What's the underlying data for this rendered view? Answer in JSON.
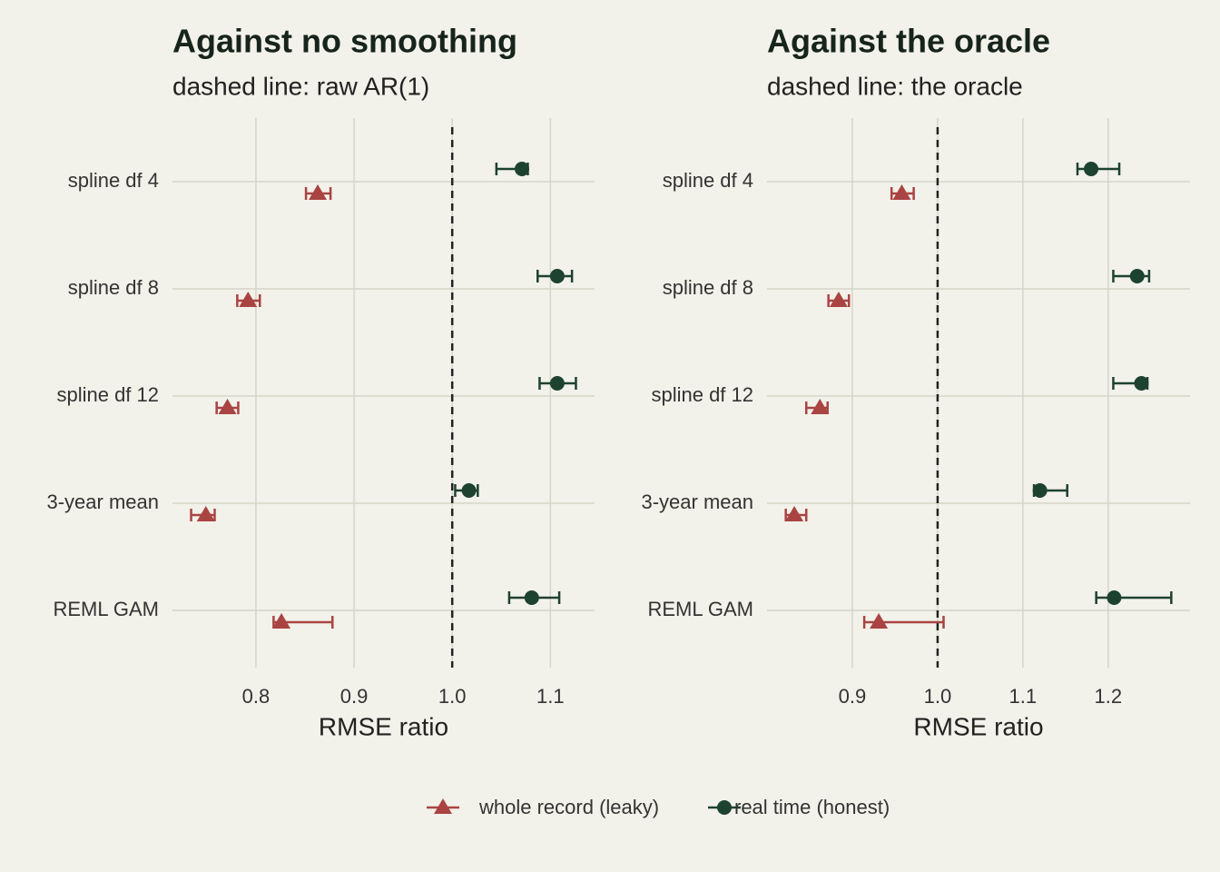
{
  "chart_data": [
    {
      "type": "errorbar",
      "title": "Against no smoothing",
      "subtitle": "dashed line: raw AR(1)",
      "xlabel": "RMSE ratio",
      "categories": [
        "spline df 4",
        "spline df 8",
        "spline df 12",
        "3-year mean",
        "REML GAM"
      ],
      "xlim": [
        0.715,
        1.145
      ],
      "xticks": [
        0.8,
        0.9,
        {
          "value": 1.0,
          "label": "1.0"
        },
        1.1
      ],
      "refline": 1,
      "grid": true,
      "legend": "bottom",
      "series": [
        {
          "name": "whole record (leaky)",
          "color": "#a94442",
          "marker": "triangle",
          "values": [
            0.863,
            0.792,
            0.771,
            0.749,
            0.826
          ],
          "lower": [
            0.851,
            0.781,
            0.76,
            0.734,
            0.818
          ],
          "upper": [
            0.876,
            0.804,
            0.782,
            0.758,
            0.878
          ]
        },
        {
          "name": "real time (honest)",
          "color": "#1e4230",
          "marker": "circle",
          "values": [
            1.071,
            1.107,
            1.107,
            1.017,
            1.081
          ],
          "lower": [
            1.045,
            1.087,
            1.089,
            1.003,
            1.058
          ],
          "upper": [
            1.077,
            1.122,
            1.126,
            1.026,
            1.109
          ]
        }
      ]
    },
    {
      "type": "errorbar",
      "title": "Against the oracle",
      "subtitle": "dashed line: the oracle",
      "xlabel": "RMSE ratio",
      "categories": [
        "spline df 4",
        "spline df 8",
        "spline df 12",
        "3-year mean",
        "REML GAM"
      ],
      "xlim": [
        0.8,
        1.296
      ],
      "xticks": [
        0.9,
        {
          "value": 1.0,
          "label": "1.0"
        },
        1.1,
        1.2
      ],
      "refline": 1,
      "grid": true,
      "series": [
        {
          "name": "whole record (leaky)",
          "color": "#a94442",
          "marker": "triangle",
          "values": [
            0.958,
            0.884,
            0.862,
            0.832,
            0.931
          ],
          "lower": [
            0.946,
            0.872,
            0.846,
            0.822,
            0.914
          ],
          "upper": [
            0.972,
            0.896,
            0.871,
            0.846,
            1.007
          ]
        },
        {
          "name": "real time (honest)",
          "color": "#1e4230",
          "marker": "circle",
          "values": [
            1.18,
            1.234,
            1.239,
            1.12,
            1.207
          ],
          "lower": [
            1.164,
            1.206,
            1.206,
            1.113,
            1.186
          ],
          "upper": [
            1.213,
            1.248,
            1.246,
            1.152,
            1.274
          ]
        }
      ]
    }
  ]
}
